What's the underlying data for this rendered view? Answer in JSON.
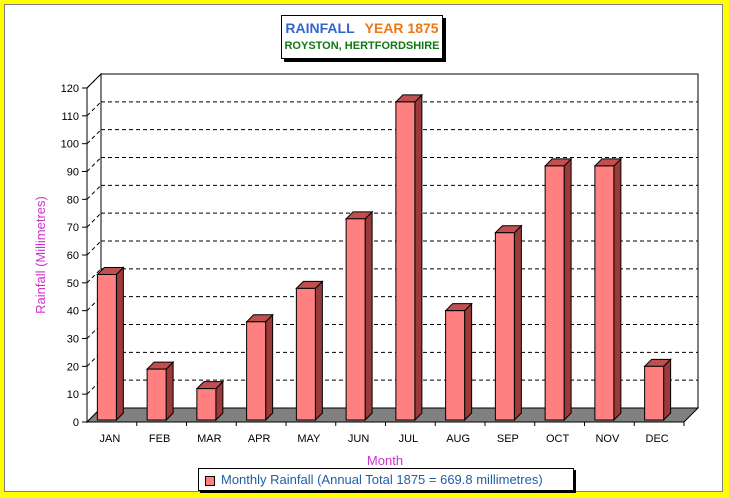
{
  "title": {
    "main": "RAINFALL",
    "year": "YEAR 1875",
    "subtitle": "ROYSTON, HERTFORDSHIRE"
  },
  "colors": {
    "background": "#ffff00",
    "bar_front": "#ff8080",
    "bar_side": "#9a3a3a",
    "bar_top": "#c05050",
    "floor": "#808080",
    "axis_label": "#cc33cc",
    "legend_text": "#1f5fa8",
    "title_main": "#3366cc",
    "title_year": "#ee7711",
    "title_sub": "#117711"
  },
  "chart_data": {
    "type": "bar",
    "categories": [
      "JAN",
      "FEB",
      "MAR",
      "APR",
      "MAY",
      "JUN",
      "JUL",
      "AUG",
      "SEP",
      "OCT",
      "NOV",
      "DEC"
    ],
    "series": [
      {
        "name": "Monthly Rainfall (Annual Total 1875 = 669.8 millimetres)",
        "values": [
          53,
          19,
          12,
          36,
          48,
          73,
          115,
          40,
          68,
          92,
          92,
          20
        ]
      }
    ],
    "xlabel": "Month",
    "ylabel": "Rainfall (Millimetres)",
    "ylim": [
      0,
      120
    ],
    "yticks": [
      0,
      10,
      20,
      30,
      40,
      50,
      60,
      70,
      80,
      90,
      100,
      110,
      120
    ],
    "grid": true,
    "legend_position": "bottom"
  }
}
